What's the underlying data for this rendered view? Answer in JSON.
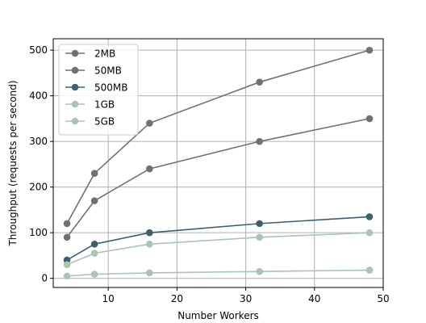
{
  "chart_data": {
    "type": "line",
    "title": "",
    "xlabel": "Number Workers",
    "ylabel": "Throughput (requests per second)",
    "xlim": [
      2,
      50
    ],
    "ylim": [
      -20,
      525
    ],
    "xticks": [
      10,
      20,
      30,
      40,
      50
    ],
    "xtick_labels": [
      "10",
      "20",
      "30",
      "40",
      "50"
    ],
    "yticks": [
      0,
      100,
      200,
      300,
      400,
      500
    ],
    "ytick_labels": [
      "0",
      "100",
      "200",
      "300",
      "400",
      "500"
    ],
    "grid": true,
    "legend_position": "top-left",
    "x": [
      4,
      8,
      16,
      32,
      48
    ],
    "series": [
      {
        "name": "2MB",
        "color": "#727070",
        "values": [
          120,
          230,
          340,
          430,
          500
        ]
      },
      {
        "name": "50MB",
        "color": "#727070",
        "values": [
          90,
          170,
          240,
          300,
          350
        ]
      },
      {
        "name": "500MB",
        "color": "#3e5f6e",
        "values": [
          40,
          75,
          100,
          120,
          135
        ]
      },
      {
        "name": "1GB",
        "color": "#a9c4b3",
        "values": [
          30,
          55,
          75,
          90,
          100
        ]
      },
      {
        "name": "5GB",
        "color": "#a9c4b3",
        "values": [
          5,
          9,
          12,
          15,
          18
        ]
      }
    ]
  }
}
